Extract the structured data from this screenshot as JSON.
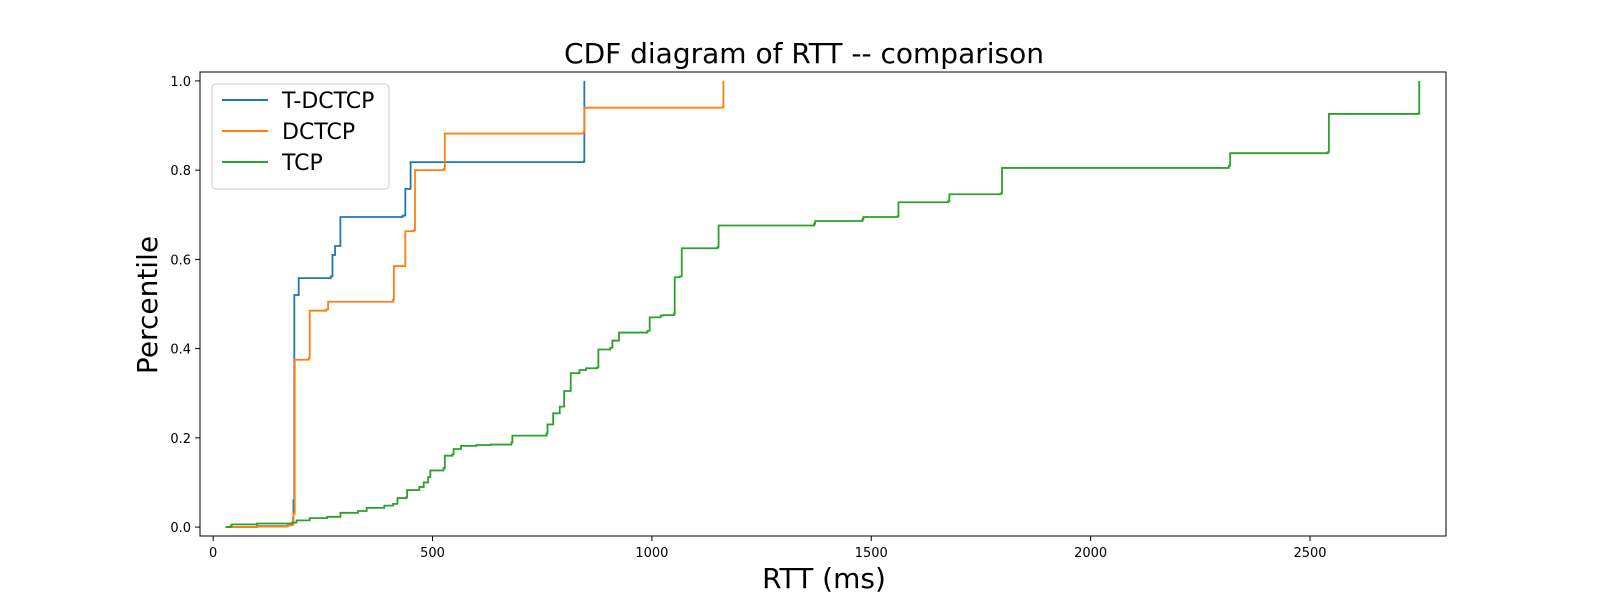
{
  "chart_data": {
    "type": "line",
    "step": true,
    "title": "CDF diagram of RTT -- comparison",
    "xlabel": "RTT (ms)",
    "ylabel": "Percentile",
    "xlim": [
      -30,
      2810
    ],
    "ylim": [
      -0.02,
      1.02
    ],
    "xticks": [
      0,
      500,
      1000,
      1500,
      2000,
      2500
    ],
    "yticks": [
      "0.0",
      "0.2",
      "0.4",
      "0.6",
      "0.8",
      "1.0"
    ],
    "grid": false,
    "legend_position": "top-left",
    "series": [
      {
        "name": "T-DCTCP",
        "color": "#1f77b4",
        "points": [
          [
            30,
            0.0
          ],
          [
            100,
            0.002
          ],
          [
            170,
            0.005
          ],
          [
            181,
            0.008
          ],
          [
            182,
            0.02
          ],
          [
            183,
            0.06
          ],
          [
            185,
            0.52
          ],
          [
            195,
            0.558
          ],
          [
            268,
            0.562
          ],
          [
            272,
            0.61
          ],
          [
            278,
            0.63
          ],
          [
            290,
            0.695
          ],
          [
            432,
            0.698
          ],
          [
            438,
            0.758
          ],
          [
            450,
            0.818
          ],
          [
            845,
            0.82
          ],
          [
            846,
            1.0
          ]
        ]
      },
      {
        "name": "DCTCP",
        "color": "#ff7f0e",
        "points": [
          [
            30,
            0.0
          ],
          [
            100,
            0.001
          ],
          [
            170,
            0.004
          ],
          [
            180,
            0.006
          ],
          [
            183,
            0.03
          ],
          [
            186,
            0.375
          ],
          [
            218,
            0.378
          ],
          [
            220,
            0.485
          ],
          [
            258,
            0.488
          ],
          [
            262,
            0.505
          ],
          [
            410,
            0.51
          ],
          [
            412,
            0.585
          ],
          [
            435,
            0.585
          ],
          [
            438,
            0.663
          ],
          [
            457,
            0.665
          ],
          [
            460,
            0.8
          ],
          [
            525,
            0.803
          ],
          [
            528,
            0.882
          ],
          [
            844,
            0.885
          ],
          [
            846,
            0.94
          ],
          [
            1162,
            0.942
          ],
          [
            1163,
            1.0
          ]
        ]
      },
      {
        "name": "TCP",
        "color": "#2ca02c",
        "points": [
          [
            28,
            0.0
          ],
          [
            40,
            0.002
          ],
          [
            42,
            0.006
          ],
          [
            100,
            0.008
          ],
          [
            180,
            0.01
          ],
          [
            190,
            0.015
          ],
          [
            220,
            0.02
          ],
          [
            260,
            0.023
          ],
          [
            290,
            0.032
          ],
          [
            330,
            0.036
          ],
          [
            350,
            0.043
          ],
          [
            390,
            0.048
          ],
          [
            410,
            0.052
          ],
          [
            420,
            0.065
          ],
          [
            440,
            0.067
          ],
          [
            442,
            0.083
          ],
          [
            470,
            0.09
          ],
          [
            480,
            0.1
          ],
          [
            490,
            0.112
          ],
          [
            495,
            0.127
          ],
          [
            525,
            0.132
          ],
          [
            528,
            0.16
          ],
          [
            545,
            0.163
          ],
          [
            548,
            0.175
          ],
          [
            565,
            0.182
          ],
          [
            600,
            0.184
          ],
          [
            632,
            0.185
          ],
          [
            680,
            0.19
          ],
          [
            682,
            0.205
          ],
          [
            760,
            0.21
          ],
          [
            762,
            0.23
          ],
          [
            775,
            0.255
          ],
          [
            790,
            0.27
          ],
          [
            800,
            0.305
          ],
          [
            815,
            0.345
          ],
          [
            835,
            0.352
          ],
          [
            850,
            0.356
          ],
          [
            875,
            0.358
          ],
          [
            878,
            0.398
          ],
          [
            905,
            0.402
          ],
          [
            910,
            0.418
          ],
          [
            925,
            0.436
          ],
          [
            990,
            0.44
          ],
          [
            995,
            0.47
          ],
          [
            1020,
            0.474
          ],
          [
            1025,
            0.475
          ],
          [
            1050,
            0.478
          ],
          [
            1052,
            0.56
          ],
          [
            1063,
            0.562
          ],
          [
            1068,
            0.625
          ],
          [
            1150,
            0.628
          ],
          [
            1152,
            0.676
          ],
          [
            1370,
            0.68
          ],
          [
            1372,
            0.686
          ],
          [
            1480,
            0.69
          ],
          [
            1482,
            0.695
          ],
          [
            1560,
            0.697
          ],
          [
            1562,
            0.728
          ],
          [
            1675,
            0.73
          ],
          [
            1678,
            0.746
          ],
          [
            1795,
            0.748
          ],
          [
            1798,
            0.805
          ],
          [
            2315,
            0.81
          ],
          [
            2318,
            0.838
          ],
          [
            2540,
            0.84
          ],
          [
            2543,
            0.926
          ],
          [
            2748,
            0.928
          ],
          [
            2749,
            1.0
          ]
        ]
      }
    ]
  }
}
